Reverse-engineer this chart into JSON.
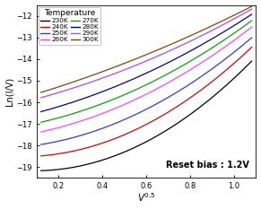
{
  "title": "",
  "xlabel": "V^{0.5}",
  "ylabel": "Ln(I/V)",
  "xlim": [
    0.1,
    1.1
  ],
  "ylim": [
    -19.5,
    -11.5
  ],
  "xticks": [
    0.2,
    0.4,
    0.6,
    0.8,
    1.0
  ],
  "yticks": [
    -19,
    -18,
    -17,
    -16,
    -15,
    -14,
    -13,
    -12
  ],
  "annotation": "Reset bias : 1.2V",
  "series": [
    {
      "label": "230K",
      "color": "#000000",
      "a": -19.7,
      "b": 2.0,
      "c": 3.5
    },
    {
      "label": "240K",
      "color": "#dd0000",
      "a": -19.1,
      "b": 2.2,
      "c": 3.5
    },
    {
      "label": "250K",
      "color": "#3333ff",
      "a": -18.55,
      "b": 2.4,
      "c": 3.5
    },
    {
      "label": "260K",
      "color": "#ff44ff",
      "a": -18.0,
      "b": 2.6,
      "c": 3.5
    },
    {
      "label": "270K",
      "color": "#00aa00",
      "a": -17.55,
      "b": 2.7,
      "c": 3.5
    },
    {
      "label": "280K",
      "color": "#000099",
      "a": -17.1,
      "b": 2.8,
      "c": 3.5
    },
    {
      "label": "290K",
      "color": "#bb44ee",
      "a": -16.55,
      "b": 2.9,
      "c": 3.5
    },
    {
      "label": "300K",
      "color": "#884400",
      "a": -16.1,
      "b": 3.0,
      "c": 3.5
    }
  ],
  "legend_title": "Temperature",
  "legend_order": [
    0,
    1,
    2,
    3,
    4,
    5,
    6,
    7
  ],
  "background_color": "#ffffff"
}
